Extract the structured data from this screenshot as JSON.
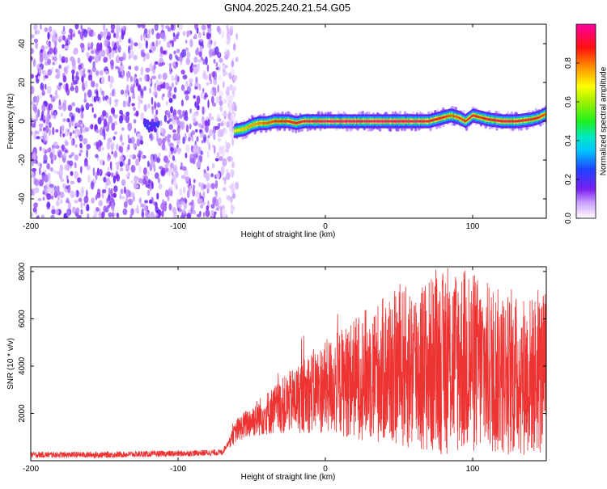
{
  "title": "GN04.2025.240.21.54.G05",
  "chart_data": [
    {
      "type": "heatmap",
      "name": "spectrogram",
      "xlabel": "Height of straight line (km)",
      "ylabel": "Frequency (Hz)",
      "xlim": [
        -200,
        150
      ],
      "ylim": [
        -50,
        50
      ],
      "xticks": [
        -200,
        -100,
        0,
        100
      ],
      "yticks": [
        -40,
        -20,
        0,
        20,
        40
      ],
      "colorbar": {
        "label": "Normalized spectral amplitude",
        "range": [
          0,
          1
        ],
        "ticks": [
          "0.0",
          "0.2",
          "0.4",
          "0.6",
          "0.8"
        ],
        "tick_values": [
          0.0,
          0.2,
          0.4,
          0.6,
          0.8
        ]
      },
      "noise_region_x": [
        -200,
        -60
      ],
      "signal_trace": {
        "x": [
          -62,
          -55,
          -50,
          -45,
          -40,
          -35,
          -30,
          -25,
          -20,
          -15,
          -10,
          0,
          20,
          40,
          60,
          70,
          75,
          80,
          85,
          90,
          95,
          100,
          105,
          110,
          120,
          130,
          140,
          145,
          150
        ],
        "y": [
          -5,
          -4,
          -2,
          -1,
          -1,
          0,
          0,
          0,
          -1,
          0,
          0,
          0,
          0,
          0,
          0,
          0,
          1,
          2,
          3,
          2,
          0,
          3,
          2,
          1,
          0,
          0,
          1,
          2,
          4
        ],
        "amplitude": [
          0.4,
          0.55,
          0.6,
          0.65,
          0.7,
          0.75,
          0.8,
          0.85,
          0.85,
          0.9,
          0.95,
          1,
          1,
          1,
          0.95,
          0.9,
          0.85,
          0.8,
          0.7,
          0.75,
          0.8,
          0.85,
          0.8,
          0.85,
          0.9,
          0.9,
          0.85,
          0.8,
          0.7
        ]
      }
    },
    {
      "type": "line",
      "name": "snr",
      "xlabel": "Height of straight line (km)",
      "ylabel": "SNR (10 * v/v)",
      "xlim": [
        -200,
        150
      ],
      "ylim": [
        0,
        8200
      ],
      "xticks": [
        -200,
        -100,
        0,
        100
      ],
      "yticks": [
        2000,
        4000,
        6000,
        8000
      ],
      "color": "#ee3333",
      "envelope": {
        "x": [
          -200,
          -150,
          -100,
          -70,
          -60,
          -50,
          -40,
          -30,
          -20,
          -10,
          0,
          10,
          20,
          30,
          40,
          50,
          60,
          70,
          80,
          90,
          100,
          110,
          120,
          130,
          140,
          150
        ],
        "y": [
          200,
          200,
          250,
          300,
          1300,
          1700,
          2000,
          2300,
          2600,
          2900,
          3100,
          3300,
          3500,
          3700,
          3800,
          3900,
          3950,
          4000,
          4100,
          4300,
          4100,
          3900,
          3700,
          3600,
          3600,
          3700
        ]
      }
    }
  ]
}
